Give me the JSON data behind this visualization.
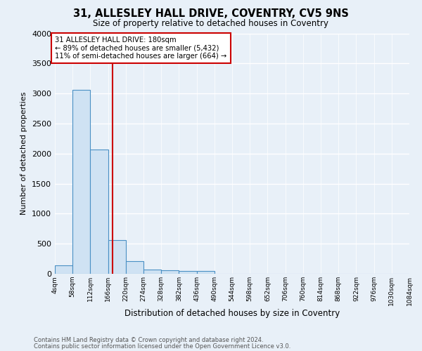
{
  "title": "31, ALLESLEY HALL DRIVE, COVENTRY, CV5 9NS",
  "subtitle": "Size of property relative to detached houses in Coventry",
  "xlabel": "Distribution of detached houses by size in Coventry",
  "ylabel": "Number of detached properties",
  "footnote1": "Contains HM Land Registry data © Crown copyright and database right 2024.",
  "footnote2": "Contains public sector information licensed under the Open Government Licence v3.0.",
  "bin_edges": [
    4,
    58,
    112,
    166,
    220,
    274,
    328,
    382,
    436,
    490,
    544,
    598,
    652,
    706,
    760,
    814,
    868,
    922,
    976,
    1030,
    1084
  ],
  "bin_heights": [
    140,
    3060,
    2070,
    560,
    215,
    70,
    55,
    45,
    45,
    0,
    0,
    0,
    0,
    0,
    0,
    0,
    0,
    0,
    0,
    0
  ],
  "bar_facecolor": "#cfe2f3",
  "bar_edgecolor": "#4a90c4",
  "property_size": 180,
  "vline_color": "#cc0000",
  "annotation_text": "31 ALLESLEY HALL DRIVE: 180sqm\n← 89% of detached houses are smaller (5,432)\n11% of semi-detached houses are larger (664) →",
  "annotation_boxcolor": "white",
  "annotation_edgecolor": "#cc0000",
  "ylim": [
    0,
    4000
  ],
  "background_color": "#e8f0f8",
  "grid_color": "white",
  "tick_labels": [
    "4sqm",
    "58sqm",
    "112sqm",
    "166sqm",
    "220sqm",
    "274sqm",
    "328sqm",
    "382sqm",
    "436sqm",
    "490sqm",
    "544sqm",
    "598sqm",
    "652sqm",
    "706sqm",
    "760sqm",
    "814sqm",
    "868sqm",
    "922sqm",
    "976sqm",
    "1030sqm",
    "1084sqm"
  ]
}
